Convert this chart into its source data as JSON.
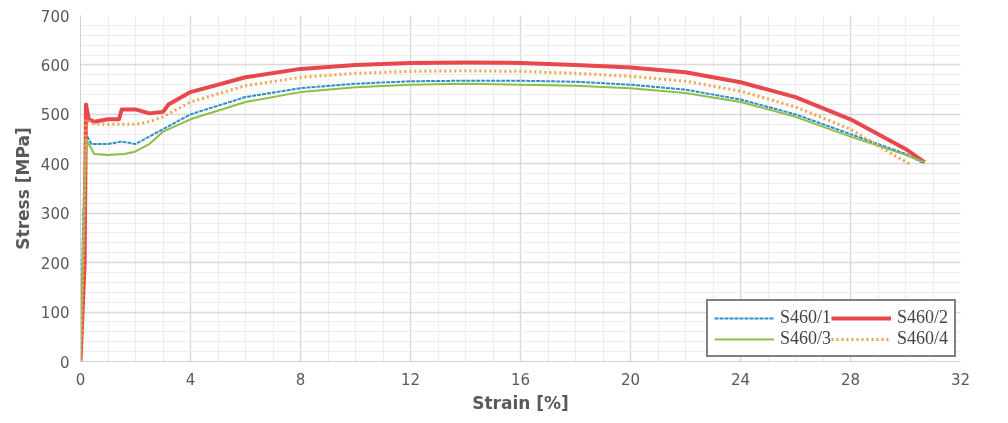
{
  "chart_data": {
    "type": "line",
    "xlabel": "Strain [%]",
    "ylabel": "Stress [MPa]",
    "xlim": [
      0,
      32
    ],
    "xticks": [
      0,
      4,
      8,
      12,
      16,
      20,
      24,
      28,
      32
    ],
    "ylim": [
      0,
      700
    ],
    "yticks": [
      0,
      100,
      200,
      300,
      400,
      500,
      600,
      700
    ],
    "grid": true,
    "legend": "bottom right",
    "marker": "none",
    "series": [
      {
        "name": "S460/1",
        "color": "#2e8fc8",
        "line_style": "dashed",
        "x": [
          0,
          0.1,
          0.2,
          0.4,
          1,
          1.5,
          2,
          3,
          4,
          6,
          8,
          10,
          12,
          14,
          16,
          18,
          20,
          22,
          24,
          26,
          28,
          30,
          30.6
        ],
        "values": [
          0,
          300,
          460,
          440,
          440,
          445,
          440,
          470,
          500,
          535,
          553,
          562,
          567,
          568,
          568,
          566,
          560,
          550,
          530,
          500,
          460,
          420,
          403
        ]
      },
      {
        "name": "S460/2",
        "color": "#e8474c",
        "line_style": "solid",
        "x": [
          0,
          0.15,
          0.2,
          0.3,
          0.5,
          1,
          1.4,
          1.5,
          2,
          2.5,
          3,
          3.2,
          4,
          6,
          8,
          10,
          12,
          14,
          16,
          18,
          20,
          22,
          24,
          26,
          28,
          30,
          30.7
        ],
        "values": [
          0,
          200,
          520,
          490,
          485,
          490,
          490,
          510,
          510,
          502,
          505,
          520,
          545,
          575,
          592,
          600,
          604,
          605,
          604,
          600,
          595,
          585,
          565,
          535,
          490,
          430,
          403
        ]
      },
      {
        "name": "S460/3",
        "color": "#8cbf4a",
        "line_style": "solid",
        "x": [
          0,
          0.2,
          0.5,
          1,
          1.6,
          2,
          2.5,
          3,
          4,
          6,
          8,
          10,
          12,
          14,
          16,
          18,
          20,
          22,
          24,
          26,
          28,
          30,
          30.7
        ],
        "values": [
          0,
          450,
          420,
          418,
          420,
          425,
          440,
          465,
          490,
          525,
          545,
          555,
          560,
          562,
          560,
          558,
          553,
          543,
          525,
          495,
          455,
          418,
          403
        ]
      },
      {
        "name": "S460/4",
        "color": "#f5a04a",
        "line_style": "dotted",
        "x": [
          0,
          0.1,
          0.2,
          0.5,
          1,
          2,
          2.5,
          3,
          4,
          6,
          8,
          10,
          12,
          14,
          16,
          18,
          20,
          22,
          24,
          26,
          28,
          29.5,
          30.2
        ],
        "values": [
          0,
          200,
          490,
          480,
          480,
          480,
          485,
          495,
          525,
          558,
          575,
          583,
          587,
          588,
          587,
          583,
          577,
          567,
          547,
          515,
          470,
          420,
          398
        ]
      }
    ]
  }
}
